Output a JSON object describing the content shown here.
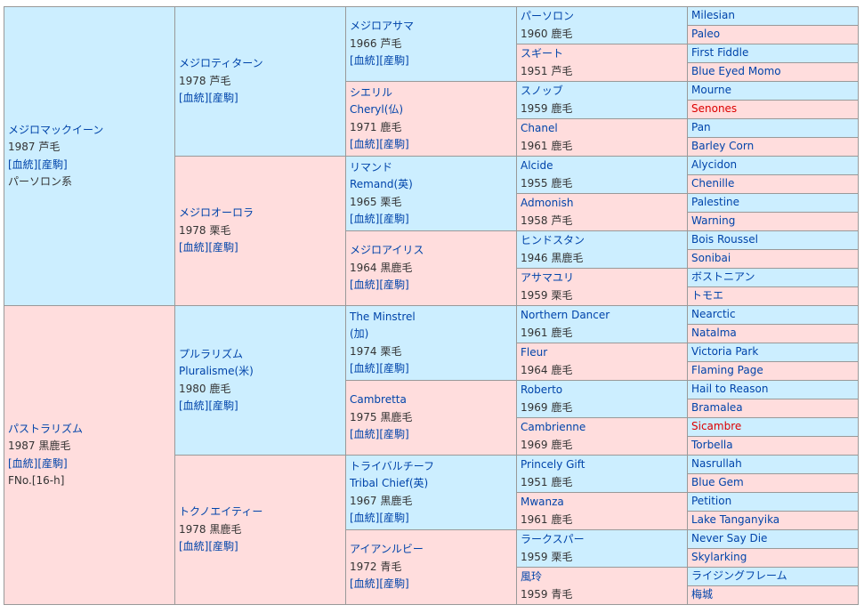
{
  "g1": [
    {
      "name": "メジロマックイーン",
      "year": "1987",
      "color": "芦毛",
      "link1": "[血統]",
      "link2": "[産駒]",
      "extra": "パーソロン系"
    },
    {
      "name": "パストラリズム",
      "year": "1987",
      "color": "黒鹿毛",
      "link1": "[血統]",
      "link2": "[産駒]",
      "extra": "FNo.[16-h]"
    }
  ],
  "g2": [
    {
      "name": "メジロティターン",
      "year": "1978",
      "color": "芦毛",
      "link1": "[血統]",
      "link2": "[産駒]"
    },
    {
      "name": "メジロオーロラ",
      "year": "1978",
      "color": "栗毛",
      "link1": "[血統]",
      "link2": "[産駒]"
    },
    {
      "name": "プルラリズム",
      "name2": "Pluralisme(米)",
      "year": "1980",
      "color": "鹿毛",
      "link1": "[血統]",
      "link2": "[産駒]"
    },
    {
      "name": "トクノエイティー",
      "year": "1978",
      "color": "黒鹿毛",
      "link1": "[血統]",
      "link2": "[産駒]"
    }
  ],
  "g3": [
    {
      "name": "メジロアサマ",
      "year": "1966",
      "color": "芦毛",
      "link1": "[血統]",
      "link2": "[産駒]"
    },
    {
      "name": "シエリル",
      "name2": "Cheryl(仏)",
      "year": "1971",
      "color": "鹿毛",
      "link1": "[血統]",
      "link2": "[産駒]"
    },
    {
      "name": "リマンド",
      "name2": "Remand(英)",
      "year": "1965",
      "color": "栗毛",
      "link1": "[血統]",
      "link2": "[産駒]"
    },
    {
      "name": "メジロアイリス",
      "year": "1964",
      "color": "黒鹿毛",
      "link1": "[血統]",
      "link2": "[産駒]"
    },
    {
      "name": "The Minstrel",
      "name2": "(加)",
      "year": "1974",
      "color": "栗毛",
      "link1": "[血統]",
      "link2": "[産駒]"
    },
    {
      "name": "Cambretta",
      "year": "1975",
      "color": "黒鹿毛",
      "link1": "[血統]",
      "link2": "[産駒]"
    },
    {
      "name": "トライバルチーフ",
      "name2": "Tribal Chief(英)",
      "year": "1967",
      "color": "黒鹿毛",
      "link1": "[血統]",
      "link2": "[産駒]"
    },
    {
      "name": "アイアンルビー",
      "year": "1972",
      "color": "青毛",
      "link1": "[血統]",
      "link2": "[産駒]"
    }
  ],
  "g4": [
    {
      "name": "パーソロン",
      "year": "1960",
      "color": "鹿毛"
    },
    {
      "name": "スギート",
      "year": "1951",
      "color": "芦毛"
    },
    {
      "name": "スノッブ",
      "year": "1959",
      "color": "鹿毛"
    },
    {
      "name": "Chanel",
      "year": "1961",
      "color": "鹿毛"
    },
    {
      "name": "Alcide",
      "year": "1955",
      "color": "鹿毛"
    },
    {
      "name": "Admonish",
      "year": "1958",
      "color": "芦毛"
    },
    {
      "name": "ヒンドスタン",
      "year": "1946",
      "color": "黒鹿毛"
    },
    {
      "name": "アサマユリ",
      "year": "1959",
      "color": "栗毛"
    },
    {
      "name": "Northern Dancer",
      "year": "1961",
      "color": "鹿毛"
    },
    {
      "name": "Fleur",
      "year": "1964",
      "color": "鹿毛"
    },
    {
      "name": "Roberto",
      "year": "1969",
      "color": "鹿毛"
    },
    {
      "name": "Cambrienne",
      "year": "1969",
      "color": "鹿毛"
    },
    {
      "name": "Princely Gift",
      "year": "1951",
      "color": "鹿毛"
    },
    {
      "name": "Mwanza",
      "year": "1961",
      "color": "鹿毛"
    },
    {
      "name": "ラークスパー",
      "year": "1959",
      "color": "栗毛"
    },
    {
      "name": "風玲",
      "year": "1959",
      "color": "青毛"
    }
  ],
  "g5": [
    {
      "name": "Milesian",
      "highlight": false
    },
    {
      "name": "Paleo",
      "highlight": false
    },
    {
      "name": "First Fiddle",
      "highlight": false
    },
    {
      "name": "Blue Eyed Momo",
      "highlight": false
    },
    {
      "name": "Mourne",
      "highlight": false
    },
    {
      "name": "Senones",
      "highlight": true
    },
    {
      "name": "Pan",
      "highlight": false
    },
    {
      "name": "Barley Corn",
      "highlight": false
    },
    {
      "name": "Alycidon",
      "highlight": false
    },
    {
      "name": "Chenille",
      "highlight": false
    },
    {
      "name": "Palestine",
      "highlight": false
    },
    {
      "name": "Warning",
      "highlight": false
    },
    {
      "name": "Bois Roussel",
      "highlight": false
    },
    {
      "name": "Sonibai",
      "highlight": false
    },
    {
      "name": "ボストニアン",
      "highlight": false
    },
    {
      "name": "トモエ",
      "highlight": false
    },
    {
      "name": "Nearctic",
      "highlight": false
    },
    {
      "name": "Natalma",
      "highlight": false
    },
    {
      "name": "Victoria Park",
      "highlight": false
    },
    {
      "name": "Flaming Page",
      "highlight": false
    },
    {
      "name": "Hail to Reason",
      "highlight": false
    },
    {
      "name": "Bramalea",
      "highlight": false
    },
    {
      "name": "Sicambre",
      "highlight": true
    },
    {
      "name": "Torbella",
      "highlight": false
    },
    {
      "name": "Nasrullah",
      "highlight": false
    },
    {
      "name": "Blue Gem",
      "highlight": false
    },
    {
      "name": "Petition",
      "highlight": false
    },
    {
      "name": "Lake Tanganyika",
      "highlight": false
    },
    {
      "name": "Never Say Die",
      "highlight": false
    },
    {
      "name": "Skylarking",
      "highlight": false
    },
    {
      "name": "ライジングフレーム",
      "highlight": false
    },
    {
      "name": "梅城",
      "highlight": false
    }
  ],
  "colors": {
    "male": "#cceeff",
    "female": "#ffdddd",
    "link": "#0044aa",
    "highlight": "#dd0000"
  }
}
